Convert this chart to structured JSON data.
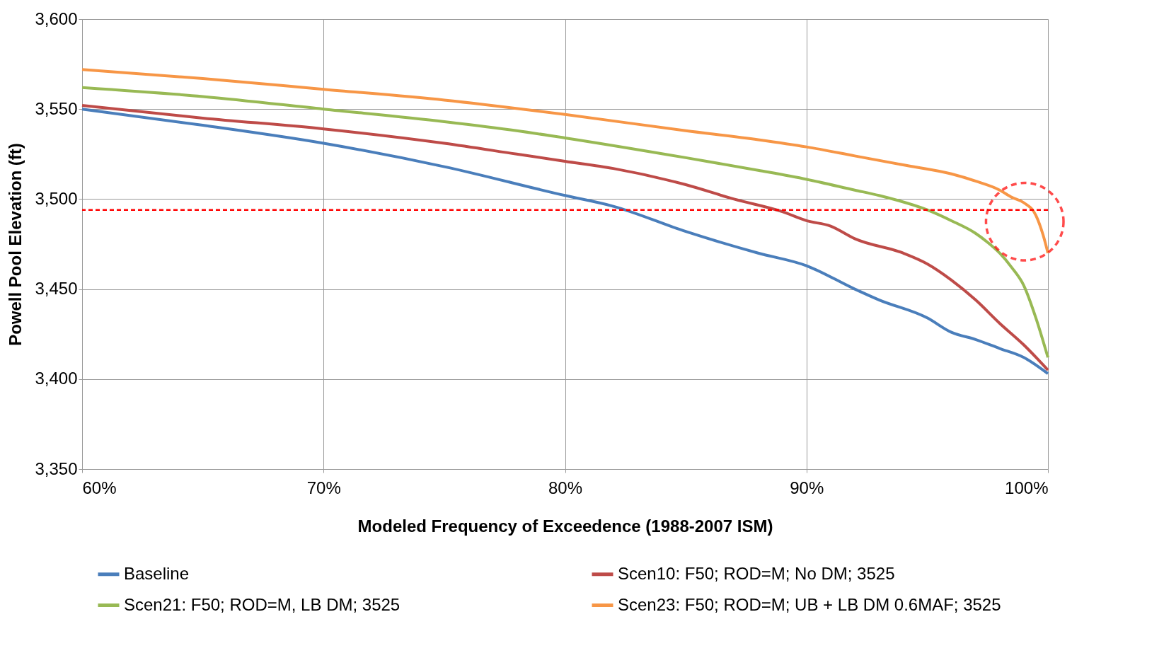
{
  "chart_data": {
    "type": "line",
    "xlabel": "Modeled Frequency of Exceedence (1988-2007 ISM)",
    "ylabel": "Powell Pool Elevation (ft)",
    "xlim": [
      60,
      100
    ],
    "xticks": [
      {
        "value": 60,
        "label": "60%"
      },
      {
        "value": 70,
        "label": "70%"
      },
      {
        "value": 80,
        "label": "80%"
      },
      {
        "value": 90,
        "label": "90%"
      },
      {
        "value": 100,
        "label": "100%"
      }
    ],
    "ylim": [
      3350,
      3600
    ],
    "yticks": [
      {
        "value": 3350,
        "label": "3,350"
      },
      {
        "value": 3400,
        "label": "3,400"
      },
      {
        "value": 3450,
        "label": "3,450"
      },
      {
        "value": 3500,
        "label": "3,500"
      },
      {
        "value": 3550,
        "label": "3,550"
      },
      {
        "value": 3600,
        "label": "3,600"
      }
    ],
    "grid": true,
    "legend": "bottom",
    "line_style": "solid",
    "series": [
      {
        "name": "Baseline",
        "color": "#4a7ebb",
        "x": [
          60,
          65,
          70,
          75,
          80,
          82,
          85,
          88,
          90,
          92,
          93,
          95,
          96,
          97,
          98,
          99,
          100
        ],
        "values": [
          3550,
          3541,
          3531,
          3518,
          3502,
          3496,
          3482,
          3470,
          3463,
          3450,
          3444,
          3434,
          3426,
          3422,
          3417,
          3412,
          3403
        ]
      },
      {
        "name": "Scen10: F50; ROD=M; No DM; 3525",
        "color": "#be4b48",
        "x": [
          60,
          65,
          70,
          75,
          78,
          80,
          82,
          85,
          87,
          89,
          90,
          91,
          92,
          94,
          95,
          96,
          97,
          98,
          99,
          100
        ],
        "values": [
          3552,
          3545,
          3539,
          3531,
          3525,
          3521,
          3517,
          3508,
          3500,
          3493,
          3488,
          3485,
          3478,
          3470,
          3464,
          3455,
          3444,
          3431,
          3419,
          3405
        ]
      },
      {
        "name": "Scen21: F50; ROD=M, LB DM; 3525",
        "color": "#98b954",
        "x": [
          60,
          65,
          70,
          75,
          78,
          80,
          85,
          88,
          90,
          92,
          93,
          95,
          96,
          97,
          97.5,
          98,
          98.5,
          99,
          99.5,
          100
        ],
        "values": [
          3562,
          3557,
          3550,
          3543,
          3538,
          3534,
          3523,
          3516,
          3511,
          3505,
          3502,
          3494,
          3488,
          3481,
          3476,
          3470,
          3462,
          3452,
          3434,
          3412
        ]
      },
      {
        "name": "Scen23: F50; ROD=M; UB + LB DM 0.6MAF; 3525",
        "color": "#f79646",
        "x": [
          60,
          65,
          70,
          75,
          80,
          85,
          88,
          90,
          92,
          94,
          96,
          97,
          98,
          98.5,
          99,
          99.5,
          99.8,
          100
        ],
        "values": [
          3572,
          3567,
          3561,
          3555,
          3547,
          3538,
          3533,
          3529,
          3524,
          3519,
          3514,
          3510,
          3505,
          3501,
          3498,
          3491,
          3480,
          3470
        ]
      }
    ],
    "ref_lines": [
      {
        "axis": "y",
        "value": 3494,
        "color": "#ff0000",
        "line_style": "dashed"
      }
    ]
  }
}
